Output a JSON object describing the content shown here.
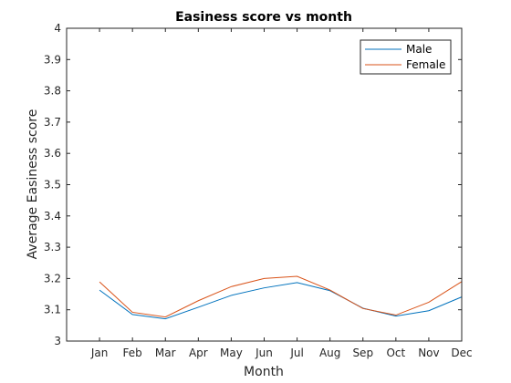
{
  "chart_data": {
    "type": "line",
    "title": "Easiness score vs month",
    "xlabel": "Month",
    "ylabel": "Average Easiness score",
    "categories": [
      "Jan",
      "Feb",
      "Mar",
      "Apr",
      "May",
      "Jun",
      "Jul",
      "Aug",
      "Sep",
      "Oct",
      "Nov",
      "Dec"
    ],
    "xlim": [
      0,
      12
    ],
    "ylim": [
      3,
      4
    ],
    "yticks": [
      "3",
      "3.1",
      "3.2",
      "3.3",
      "3.4",
      "3.5",
      "3.6",
      "3.7",
      "3.8",
      "3.9",
      "4"
    ],
    "grid": false,
    "legend_position": "top-right",
    "series": [
      {
        "name": "Male",
        "color": "#0072bd",
        "values": [
          3.163,
          3.085,
          3.071,
          3.108,
          3.146,
          3.17,
          3.187,
          3.161,
          3.105,
          3.08,
          3.097,
          3.141
        ]
      },
      {
        "name": "Female",
        "color": "#d95319",
        "values": [
          3.189,
          3.092,
          3.077,
          3.129,
          3.174,
          3.2,
          3.207,
          3.163,
          3.104,
          3.083,
          3.124,
          3.19
        ]
      }
    ]
  }
}
